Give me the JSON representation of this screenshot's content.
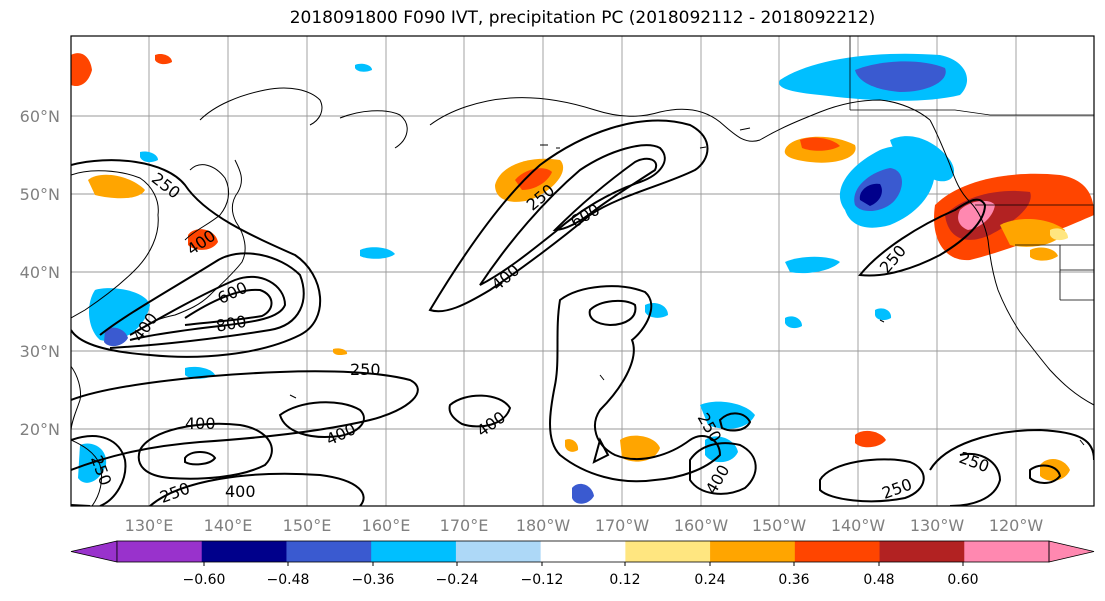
{
  "title": "2018091800 F090 IVT, precipitation PC (2018092112 - 2018092212)",
  "lat_labels": [
    "60°N",
    "50°N",
    "40°N",
    "30°N",
    "20°N"
  ],
  "lon_labels": [
    "130°E",
    "140°E",
    "150°E",
    "160°E",
    "170°E",
    "180°W",
    "170°W",
    "160°W",
    "150°W",
    "140°W",
    "130°W",
    "120°W"
  ],
  "contour_labels": [
    "250",
    "400",
    "600",
    "800",
    "250",
    "400",
    "600",
    "250",
    "400",
    "250",
    "400",
    "400",
    "400",
    "250",
    "400",
    "250",
    "250",
    "250",
    "400",
    "250"
  ],
  "colorbar": {
    "ticks": [
      "−0.60",
      "−0.48",
      "−0.36",
      "−0.24",
      "−0.12",
      "0.12",
      "0.24",
      "0.36",
      "0.48",
      "0.60"
    ],
    "colors": [
      "#9932cc",
      "#00008b",
      "#3a5ad0",
      "#00bfff",
      "#add8f7",
      "#ffffff",
      "#ffe680",
      "#ffa500",
      "#ff4500",
      "#b22222",
      "#ff88b0",
      "#ff88b0"
    ]
  }
}
